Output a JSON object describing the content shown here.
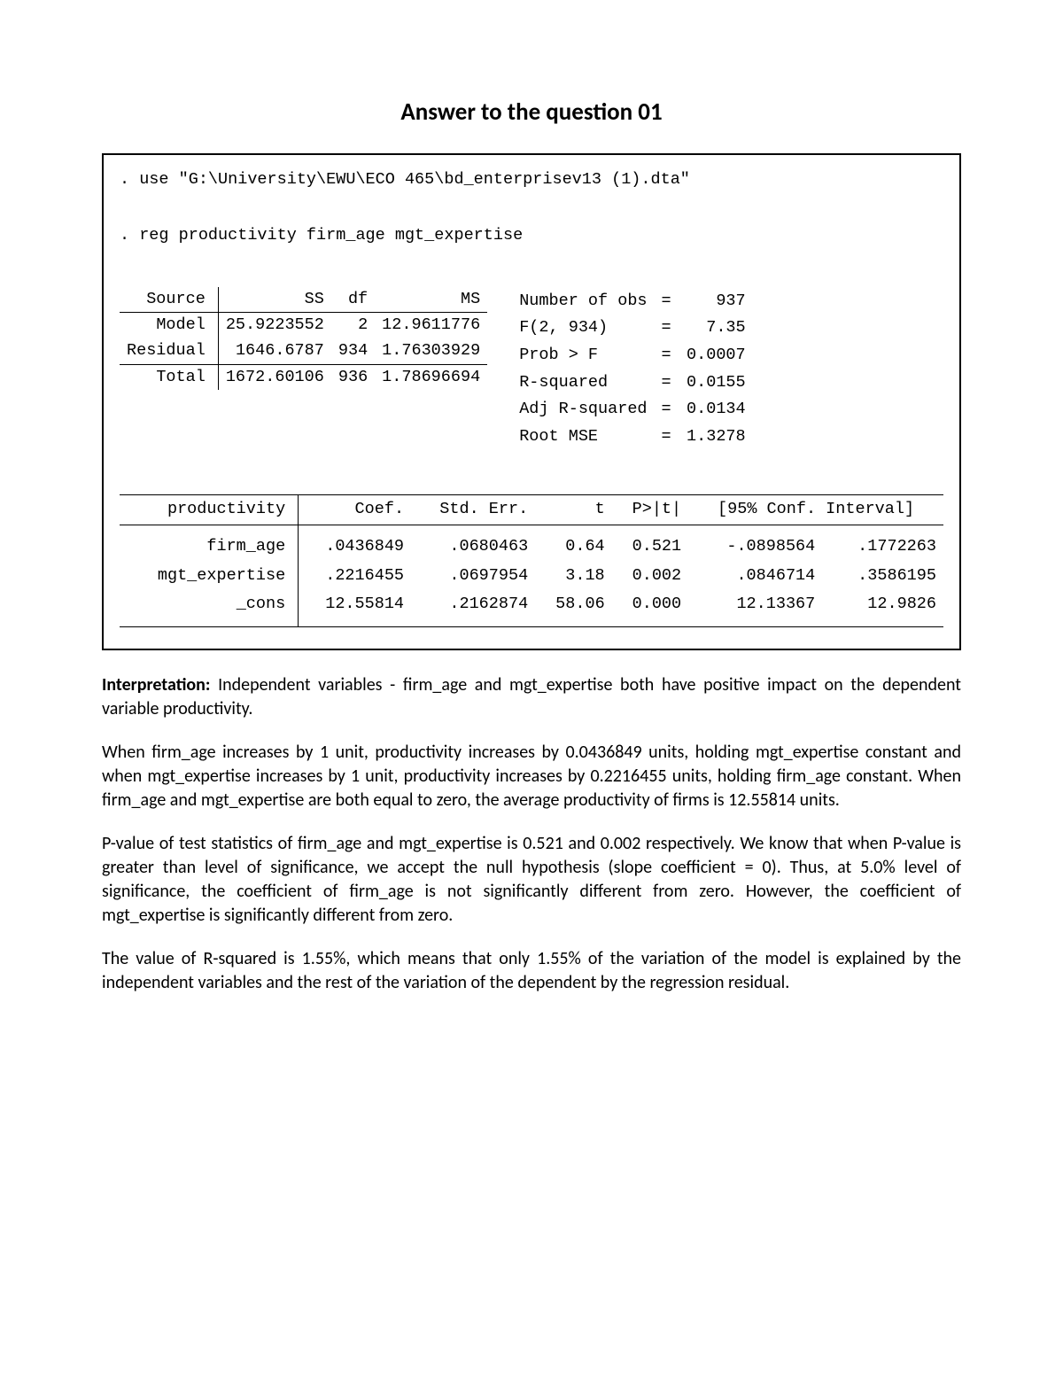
{
  "title": "Answer to the question 01",
  "commands": {
    "use": ". use \"G:\\University\\EWU\\ECO 465\\bd_enterprisev13 (1).dta\"",
    "reg": ". reg productivity firm_age mgt_expertise"
  },
  "anova": {
    "headers": {
      "source": "Source",
      "ss": "SS",
      "df": "df",
      "ms": "MS"
    },
    "rows": [
      {
        "label": "Model",
        "ss": "25.9223552",
        "df": "2",
        "ms": "12.9611776"
      },
      {
        "label": "Residual",
        "ss": "1646.6787",
        "df": "934",
        "ms": "1.76303929"
      },
      {
        "label": "Total",
        "ss": "1672.60106",
        "df": "936",
        "ms": "1.78696694"
      }
    ]
  },
  "stats": [
    {
      "label": "Number of obs",
      "eq": "=",
      "value": "937"
    },
    {
      "label": "F(2, 934)",
      "eq": "=",
      "value": "7.35"
    },
    {
      "label": "Prob > F",
      "eq": "=",
      "value": "0.0007"
    },
    {
      "label": "R-squared",
      "eq": "=",
      "value": "0.0155"
    },
    {
      "label": "Adj R-squared",
      "eq": "=",
      "value": "0.0134"
    },
    {
      "label": "Root MSE",
      "eq": "=",
      "value": "1.3278"
    }
  ],
  "coef": {
    "headers": {
      "depvar": "productivity",
      "coef": "Coef.",
      "se": "Std. Err.",
      "t": "t",
      "p": "P>|t|",
      "ci": "[95% Conf. Interval]"
    },
    "rows": [
      {
        "label": "firm_age",
        "coef": ".0436849",
        "se": ".0680463",
        "t": "0.64",
        "p": "0.521",
        "lo": "-.0898564",
        "hi": ".1772263"
      },
      {
        "label": "mgt_expertise",
        "coef": ".2216455",
        "se": ".0697954",
        "t": "3.18",
        "p": "0.002",
        "lo": ".0846714",
        "hi": ".3586195"
      },
      {
        "label": "_cons",
        "coef": "12.55814",
        "se": ".2162874",
        "t": "58.06",
        "p": "0.000",
        "lo": "12.13367",
        "hi": "12.9826"
      }
    ]
  },
  "paragraphs": {
    "p1_label": "Interpretation:",
    "p1": " Independent variables - firm_age and mgt_expertise both have positive impact on the dependent variable productivity.",
    "p2": "When firm_age increases by 1 unit, productivity increases by 0.0436849 units, holding mgt_expertise constant and when mgt_expertise increases by 1 unit, productivity increases by 0.2216455 units, holding firm_age constant. When firm_age and mgt_expertise are both equal to zero, the average productivity of firms is 12.55814 units.",
    "p3": "P-value of test statistics of firm_age and mgt_expertise is 0.521 and 0.002 respectively. We know that when P-value is greater than level of significance, we accept the null hypothesis (slope coefficient = 0). Thus, at 5.0% level of significance, the coefficient of firm_age is not significantly different from zero. However, the coefficient of mgt_expertise is significantly different from zero.",
    "p4": "The value of R-squared is 1.55%, which means that only 1.55% of the variation of the model is explained by the independent variables and the rest of the variation of the dependent by the regression residual."
  }
}
